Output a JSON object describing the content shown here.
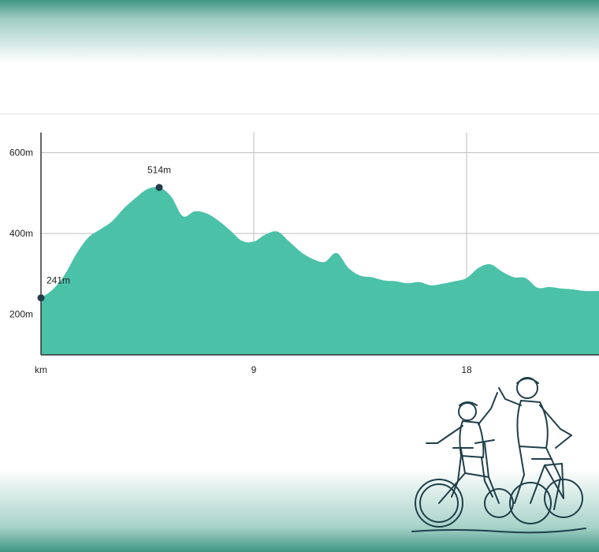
{
  "colors": {
    "area_fill": "#4bc1a8",
    "gridline": "#bdbdbd",
    "axis": "#333333",
    "marker": "#243b4a",
    "banner_teal": "#3f9583"
  },
  "decoration": {
    "illustration": "two-cyclists-high-five-line-art"
  },
  "chart_data": {
    "type": "area",
    "title": "",
    "xlabel": "km",
    "ylabel": "",
    "xlim": [
      0,
      23.6
    ],
    "ylim": [
      100,
      650
    ],
    "x_ticks": [
      {
        "value": 0,
        "label": "km"
      },
      {
        "value": 9,
        "label": "9"
      },
      {
        "value": 18,
        "label": "18"
      }
    ],
    "y_ticks": [
      {
        "value": 200,
        "label": "200m"
      },
      {
        "value": 400,
        "label": "400m"
      },
      {
        "value": 600,
        "label": "600m"
      }
    ],
    "grid": true,
    "x": [
      0,
      0.5,
      1,
      1.5,
      2,
      2.5,
      3,
      3.5,
      4,
      4.5,
      5,
      5.5,
      6,
      6.5,
      7,
      7.5,
      8,
      8.5,
      9,
      9.5,
      10,
      10.5,
      11,
      11.5,
      12,
      12.5,
      13,
      13.5,
      14,
      14.5,
      15,
      15.5,
      16,
      16.5,
      17,
      17.5,
      18,
      18.5,
      19,
      19.5,
      20,
      20.5,
      21,
      21.5,
      22,
      22.5,
      23,
      23.6
    ],
    "y": [
      241,
      262,
      298,
      350,
      390,
      410,
      430,
      462,
      488,
      510,
      514,
      492,
      443,
      455,
      450,
      432,
      408,
      382,
      380,
      398,
      405,
      380,
      354,
      337,
      330,
      352,
      315,
      296,
      292,
      284,
      282,
      277,
      280,
      272,
      276,
      282,
      290,
      315,
      324,
      306,
      292,
      290,
      266,
      268,
      264,
      262,
      258,
      258
    ],
    "annotations": [
      {
        "x": 0,
        "y": 241,
        "label": "241m"
      },
      {
        "x": 5,
        "y": 514,
        "label": "514m"
      }
    ]
  }
}
